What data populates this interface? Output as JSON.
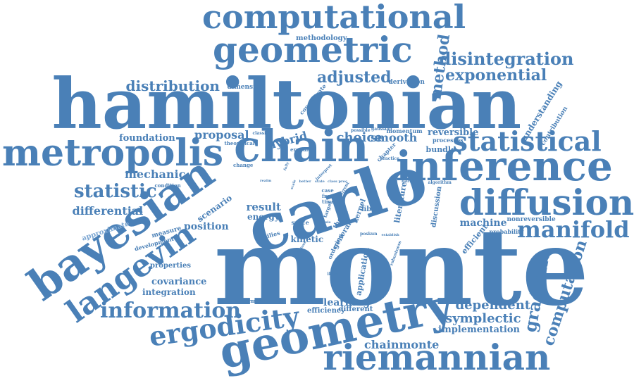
{
  "palette": {
    "primary": "#4a80b7",
    "light": "#7ea8d3"
  },
  "words": [
    {
      "text": "monte",
      "weight": 10
    },
    {
      "text": "carlo",
      "weight": 9
    },
    {
      "text": "hamiltonian",
      "weight": 9
    },
    {
      "text": "chain",
      "weight": 8
    },
    {
      "text": "inference",
      "weight": 7
    },
    {
      "text": "metropolis",
      "weight": 7
    },
    {
      "text": "geometry",
      "weight": 7
    },
    {
      "text": "bayesian",
      "weight": 7
    },
    {
      "text": "geometric",
      "weight": 7
    },
    {
      "text": "riemannian",
      "weight": 6
    },
    {
      "text": "computational",
      "weight": 6
    },
    {
      "text": "diffusion",
      "weight": 6
    },
    {
      "text": "langevin",
      "weight": 6
    },
    {
      "text": "statistical",
      "weight": 5
    },
    {
      "text": "ergodicity",
      "weight": 5
    },
    {
      "text": "manifold",
      "weight": 5
    },
    {
      "text": "information",
      "weight": 5
    },
    {
      "text": "statistic",
      "weight": 4
    },
    {
      "text": "disintegration",
      "weight": 4
    },
    {
      "text": "exponential",
      "weight": 4
    },
    {
      "text": "computation",
      "weight": 4
    },
    {
      "text": "gradient",
      "weight": 4
    },
    {
      "text": "distribution",
      "weight": 4
    },
    {
      "text": "adjusted",
      "weight": 4
    },
    {
      "text": "method",
      "weight": 4
    },
    {
      "text": "dependent",
      "weight": 4
    },
    {
      "text": "symplectic",
      "weight": 3
    },
    {
      "text": "chainmonte",
      "weight": 3
    },
    {
      "text": "differential",
      "weight": 3
    },
    {
      "text": "mechanic",
      "weight": 3
    },
    {
      "text": "proposal",
      "weight": 3
    },
    {
      "text": "choice",
      "weight": 3
    },
    {
      "text": "smooth",
      "weight": 3
    },
    {
      "text": "hybrid",
      "weight": 3
    },
    {
      "text": "result",
      "weight": 3
    },
    {
      "text": "position",
      "weight": 3
    },
    {
      "text": "foundation",
      "weight": 3
    },
    {
      "text": "machine",
      "weight": 3
    },
    {
      "text": "covariance",
      "weight": 3
    },
    {
      "text": "integration",
      "weight": 3
    },
    {
      "text": "learning",
      "weight": 3
    },
    {
      "text": "implementation",
      "weight": 3
    },
    {
      "text": "reversible",
      "weight": 2
    },
    {
      "text": "understanding",
      "weight": 2
    },
    {
      "text": "scenario",
      "weight": 2
    },
    {
      "text": "approximate",
      "weight": 2
    },
    {
      "text": "energy",
      "weight": 2
    },
    {
      "text": "kinetic",
      "weight": 2
    },
    {
      "text": "efficient",
      "weight": 2
    },
    {
      "text": "application",
      "weight": 2
    },
    {
      "text": "literature",
      "weight": 2
    },
    {
      "text": "discussion",
      "weight": 2
    },
    {
      "text": "kernel",
      "weight": 2
    },
    {
      "text": "fiber",
      "weight": 2
    },
    {
      "text": "bundle",
      "weight": 2
    },
    {
      "text": "different",
      "weight": 2
    },
    {
      "text": "efficiency",
      "weight": 2
    },
    {
      "text": "properties",
      "weight": 2
    },
    {
      "text": "measure",
      "weight": 2
    },
    {
      "text": "methodology",
      "weight": 2
    },
    {
      "text": "dimension",
      "weight": 2
    },
    {
      "text": "derivation",
      "weight": 2
    },
    {
      "text": "contribution",
      "weight": 2
    },
    {
      "text": "nonreversible",
      "weight": 2
    },
    {
      "text": "probability",
      "weight": 2
    },
    {
      "text": "general",
      "weight": 2
    },
    {
      "text": "development",
      "weight": 2
    },
    {
      "text": "performance",
      "weight": 1
    },
    {
      "text": "concentrate",
      "weight": 1
    },
    {
      "text": "processes",
      "weight": 1
    },
    {
      "text": "momentum",
      "weight": 1
    },
    {
      "text": "gaussian",
      "weight": 1
    },
    {
      "text": "possible",
      "weight": 1
    },
    {
      "text": "theoretical",
      "weight": 1
    },
    {
      "text": "classical",
      "weight": 1
    },
    {
      "text": "ergodic",
      "weight": 1
    },
    {
      "text": "change",
      "weight": 1
    },
    {
      "text": "condition",
      "weight": 1
    },
    {
      "text": "families",
      "weight": 1
    },
    {
      "text": "theory",
      "weight": 1
    },
    {
      "text": "ordering",
      "weight": 1
    },
    {
      "text": "illustrate",
      "weight": 1
    },
    {
      "text": "robustness",
      "weight": 1
    },
    {
      "text": "chapter",
      "weight": 1
    },
    {
      "text": "practice",
      "weight": 1
    },
    {
      "text": "barrier",
      "weight": 1
    },
    {
      "text": "algorithm",
      "weight": 1
    },
    {
      "text": "space",
      "weight": 1
    },
    {
      "text": "case",
      "weight": 1
    },
    {
      "text": "free",
      "weight": 1
    },
    {
      "text": "time",
      "weight": 1
    },
    {
      "text": "target",
      "weight": 1
    },
    {
      "text": "better",
      "weight": 1
    },
    {
      "text": "state",
      "weight": 1
    },
    {
      "text": "class",
      "weight": 1
    },
    {
      "text": "proc",
      "weight": 1
    },
    {
      "text": "current",
      "weight": 1
    },
    {
      "text": "interpret",
      "weight": 1
    },
    {
      "text": "poskun",
      "weight": 1
    },
    {
      "text": "establish",
      "weight": 1
    },
    {
      "text": "analysis",
      "weight": 1
    },
    {
      "text": "judicious",
      "weight": 1
    },
    {
      "text": "realm",
      "weight": 1
    },
    {
      "text": "fully",
      "weight": 1
    },
    {
      "text": "tail",
      "weight": 1
    },
    {
      "text": "scale",
      "weight": 1
    }
  ]
}
